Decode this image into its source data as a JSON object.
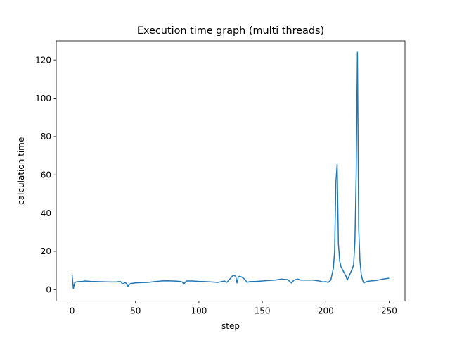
{
  "chart_data": {
    "type": "line",
    "title": "Execution time graph (multi threads)",
    "xlabel": "step",
    "ylabel": "calculation time",
    "xlim": [
      -12.5,
      262.5
    ],
    "ylim": [
      -6,
      130
    ],
    "xticks": [
      0,
      50,
      100,
      150,
      200,
      250
    ],
    "yticks": [
      0,
      20,
      40,
      60,
      80,
      100,
      120
    ],
    "grid": false,
    "series_color": "#1f77b4",
    "series": [
      {
        "x": [
          0,
          1,
          2,
          3,
          5,
          8,
          10,
          15,
          20,
          25,
          30,
          35,
          38,
          40,
          42,
          44,
          46,
          50,
          55,
          60,
          65,
          70,
          75,
          80,
          85,
          87,
          88,
          90,
          95,
          100,
          105,
          110,
          115,
          120,
          122,
          125,
          127,
          129,
          130,
          131,
          132,
          134,
          136,
          138,
          140,
          145,
          150,
          155,
          160,
          165,
          170,
          173,
          175,
          178,
          180,
          185,
          190,
          195,
          198,
          200,
          202,
          204,
          206,
          207,
          208,
          209,
          210,
          211,
          212,
          214,
          216,
          217,
          218,
          219,
          220,
          221,
          222,
          223,
          224,
          225,
          226,
          227,
          228,
          229,
          230,
          232,
          235,
          240,
          245,
          250
        ],
        "y": [
          7.5,
          0.5,
          3.5,
          4.0,
          4.2,
          4.3,
          4.5,
          4.3,
          4.2,
          4.1,
          4.0,
          4.0,
          4.3,
          3.0,
          3.8,
          1.8,
          3.2,
          3.5,
          3.7,
          3.8,
          4.2,
          4.5,
          4.6,
          4.5,
          4.3,
          4.0,
          2.8,
          4.5,
          4.5,
          4.3,
          4.2,
          4.0,
          3.8,
          4.5,
          3.8,
          6.0,
          7.5,
          7.0,
          3.5,
          6.5,
          7.0,
          6.5,
          5.5,
          3.8,
          4.2,
          4.3,
          4.5,
          4.8,
          5.0,
          5.5,
          5.2,
          3.5,
          5.0,
          5.5,
          5.0,
          5.0,
          5.0,
          4.5,
          4.0,
          4.2,
          3.8,
          5.0,
          11.0,
          20.0,
          56.0,
          65.5,
          24.0,
          15.0,
          12.0,
          9.5,
          7.0,
          5.0,
          6.5,
          8.0,
          9.5,
          11.0,
          13.0,
          25.0,
          60.0,
          124.0,
          32.0,
          15.0,
          8.0,
          5.0,
          3.5,
          4.2,
          4.5,
          4.8,
          5.5,
          6.0
        ]
      }
    ]
  }
}
